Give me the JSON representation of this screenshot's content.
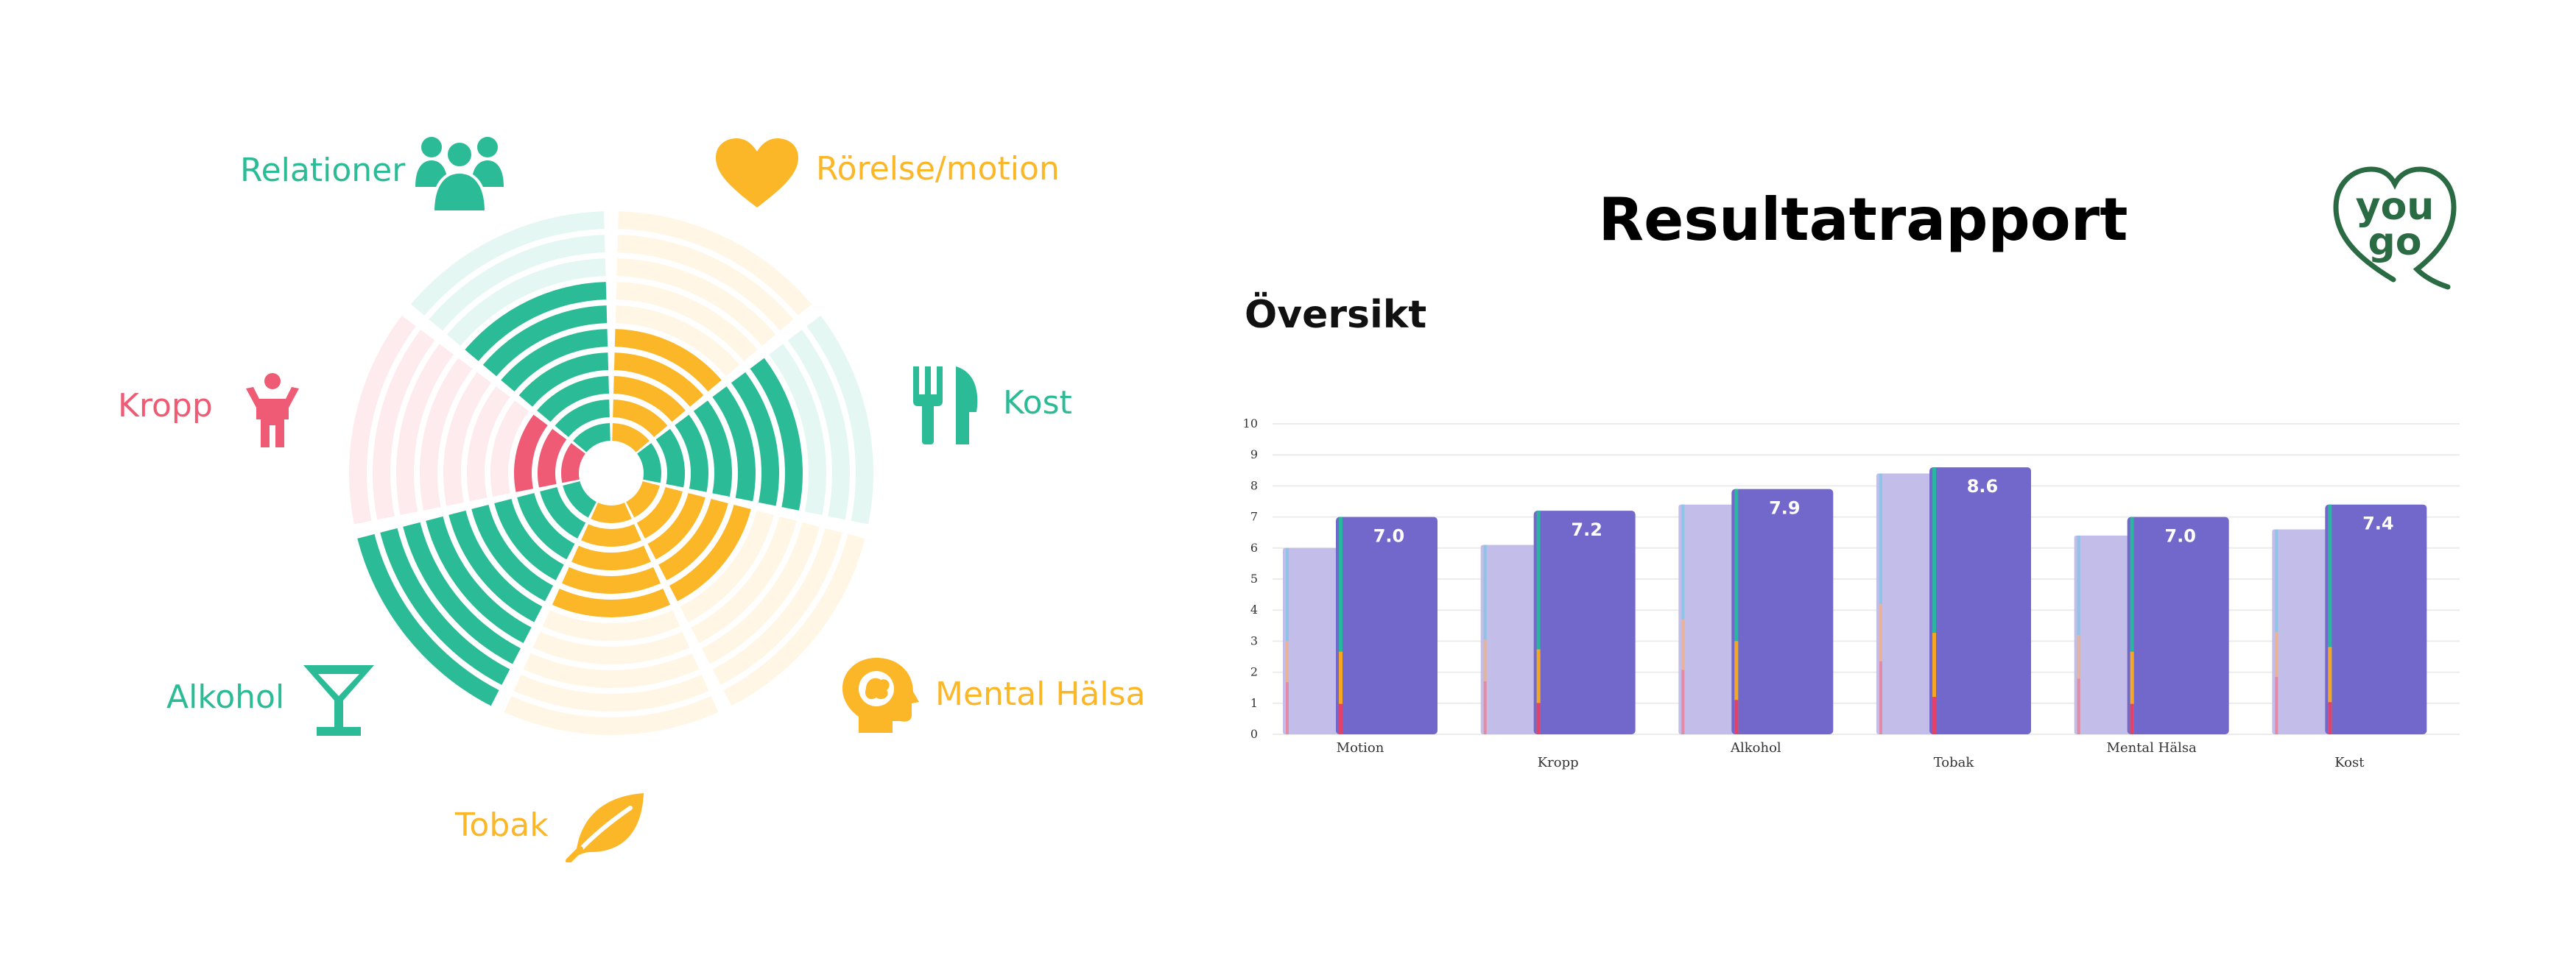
{
  "colors": {
    "teal": "#2bbc97",
    "yellow": "#fbb728",
    "pink": "#ef5a74",
    "bar_front": "#7268cb",
    "bar_back": "#c3bde9",
    "logo_green": "#2a6b44"
  },
  "wheel": {
    "segments": [
      {
        "label": "Rörelse/motion",
        "icon": "heart-icon",
        "color": "#fbb728",
        "filled_rings": 5
      },
      {
        "label": "Kost",
        "icon": "fork-knife-icon",
        "color": "#2bbc97",
        "filled_rings": 7
      },
      {
        "label": "Mental Hälsa",
        "icon": "head-brain-icon",
        "color": "#fbb728",
        "filled_rings": 5
      },
      {
        "label": "Tobak",
        "icon": "leaf-icon",
        "color": "#fbb728",
        "filled_rings": 5
      },
      {
        "label": "Alkohol",
        "icon": "cocktail-glass-icon",
        "color": "#2bbc97",
        "filled_rings": 10
      },
      {
        "label": "Kropp",
        "icon": "person-icon",
        "color": "#ef5a74",
        "filled_rings": 3
      },
      {
        "label": "Relationer",
        "icon": "group-icon",
        "color": "#2bbc97",
        "filled_rings": 7
      }
    ],
    "total_rings": 10
  },
  "report": {
    "title": "Resultatrapport",
    "subtitle": "Översikt"
  },
  "logo": {
    "line1": "you",
    "line2": "go"
  },
  "chart_data": {
    "type": "bar",
    "categories": [
      "Motion",
      "Kropp",
      "Alkohol",
      "Tobak",
      "Mental Hälsa",
      "Kost"
    ],
    "series": [
      {
        "values": [
          6.0,
          6.1,
          7.4,
          8.4,
          6.4,
          6.6
        ]
      },
      {
        "values": [
          7.0,
          7.2,
          7.9,
          8.6,
          7.0,
          7.4
        ]
      }
    ],
    "data_labels": [
      "7.0",
      "7.2",
      "7.9",
      "8.6",
      "7.0",
      "7.4"
    ],
    "yticks": [
      "0",
      "1",
      "2",
      "3",
      "4",
      "5",
      "6",
      "7",
      "8",
      "9",
      "10"
    ],
    "ylim": [
      0,
      10
    ],
    "grid": true
  }
}
